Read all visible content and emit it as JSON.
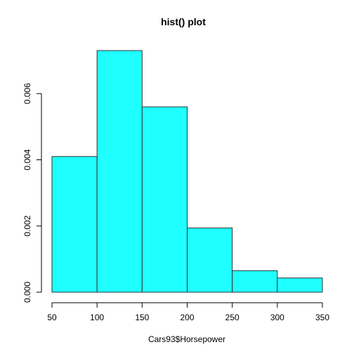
{
  "chart_data": {
    "type": "bar",
    "title": "hist() plot",
    "xlabel": "Cars93$Horsepower",
    "ylabel": "",
    "bins": [
      {
        "start": 50,
        "end": 100,
        "density": 0.0041
      },
      {
        "start": 100,
        "end": 150,
        "density": 0.0073
      },
      {
        "start": 150,
        "end": 200,
        "density": 0.0056
      },
      {
        "start": 200,
        "end": 250,
        "density": 0.00194
      },
      {
        "start": 250,
        "end": 300,
        "density": 0.00065
      },
      {
        "start": 300,
        "end": 350,
        "density": 0.00043
      }
    ],
    "xlim": [
      50,
      350
    ],
    "ylim": [
      0,
      0.0073
    ],
    "x_ticks": [
      "50",
      "100",
      "150",
      "200",
      "250",
      "300",
      "350"
    ],
    "y_ticks": [
      "0.000",
      "0.002",
      "0.004",
      "0.006"
    ],
    "grid": false,
    "bar_color": "#1FFFFF"
  }
}
